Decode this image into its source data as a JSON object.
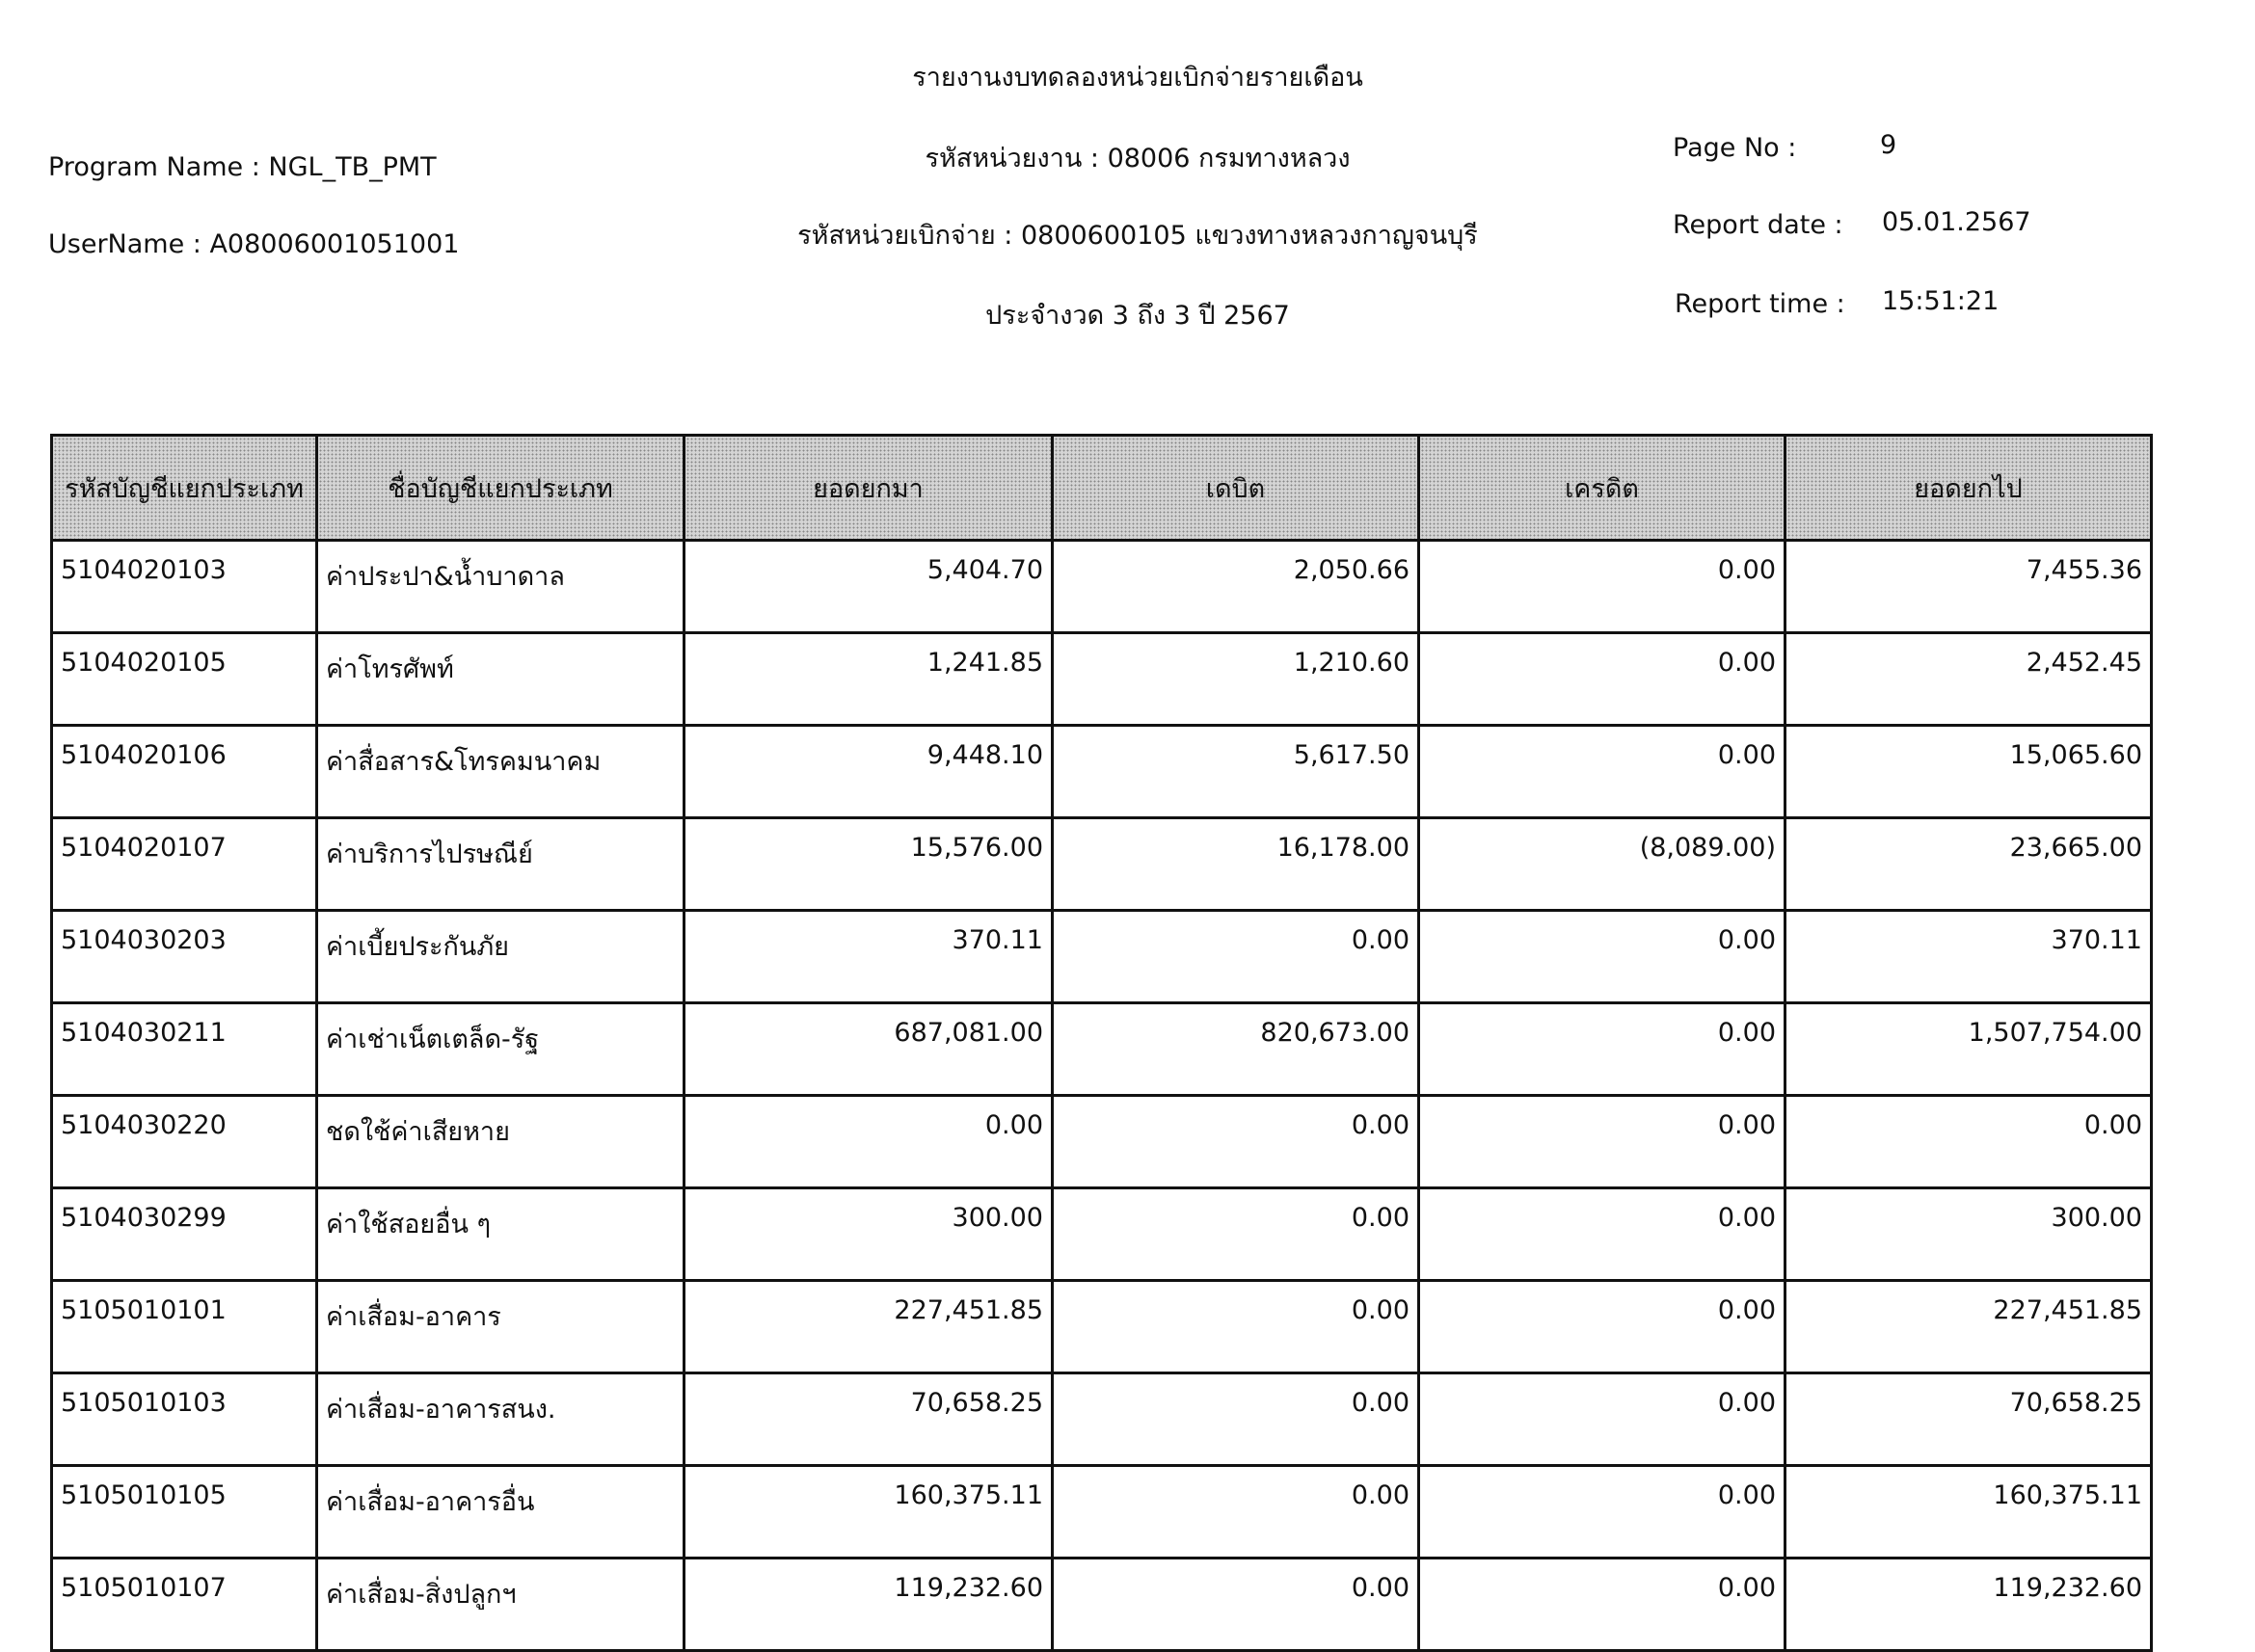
{
  "report": {
    "title": "รายงานงบทดลองหน่วยเบิกจ่ายรายเดือน",
    "agency": "รหัสหน่วยงาน : 08006 กรมทางหลวง",
    "disbursing_unit": "รหัสหน่วยเบิกจ่าย : 0800600105 แขวงทางหลวงกาญจนบุรี",
    "period": "ประจำงวด 3 ถึง 3 ปี 2567",
    "program_name": "Program Name : NGL_TB_PMT",
    "username": "UserName : A08006001051001",
    "page_no_label": "Page No :",
    "page_no": "9",
    "report_date_label": "Report date :",
    "report_date": "05.01.2567",
    "report_time_label": "Report time :",
    "report_time": "15:51:21"
  },
  "table": {
    "headers": [
      "รหัสบัญชีแยกประเภท",
      "ชื่อบัญชีแยกประเภท",
      "ยอดยกมา",
      "เดบิต",
      "เครดิต",
      "ยอดยกไป"
    ],
    "rows": [
      [
        "5104020103",
        "ค่าประปา&น้ำบาดาล",
        "5,404.70",
        "2,050.66",
        "0.00",
        "7,455.36"
      ],
      [
        "5104020105",
        "ค่าโทรศัพท์",
        "1,241.85",
        "1,210.60",
        "0.00",
        "2,452.45"
      ],
      [
        "5104020106",
        "ค่าสื่อสาร&โทรคมนาคม",
        "9,448.10",
        "5,617.50",
        "0.00",
        "15,065.60"
      ],
      [
        "5104020107",
        "ค่าบริการไปรษณีย์",
        "15,576.00",
        "16,178.00",
        "(8,089.00)",
        "23,665.00"
      ],
      [
        "5104030203",
        "ค่าเบี้ยประกันภัย",
        "370.11",
        "0.00",
        "0.00",
        "370.11"
      ],
      [
        "5104030211",
        "ค่าเช่าเน็ตเตล็ด-รัฐ",
        "687,081.00",
        "820,673.00",
        "0.00",
        "1,507,754.00"
      ],
      [
        "5104030220",
        "ชดใช้ค่าเสียหาย",
        "0.00",
        "0.00",
        "0.00",
        "0.00"
      ],
      [
        "5104030299",
        "ค่าใช้สอยอื่น ๆ",
        "300.00",
        "0.00",
        "0.00",
        "300.00"
      ],
      [
        "5105010101",
        "ค่าเสื่อม-อาคาร",
        "227,451.85",
        "0.00",
        "0.00",
        "227,451.85"
      ],
      [
        "5105010103",
        "ค่าเสื่อม-อาคารสนง.",
        "70,658.25",
        "0.00",
        "0.00",
        "70,658.25"
      ],
      [
        "5105010105",
        "ค่าเสื่อม-อาคารอื่น",
        "160,375.11",
        "0.00",
        "0.00",
        "160,375.11"
      ],
      [
        "5105010107",
        "ค่าเสื่อม-สิ่งปลูกฯ",
        "119,232.60",
        "0.00",
        "0.00",
        "119,232.60"
      ]
    ]
  }
}
